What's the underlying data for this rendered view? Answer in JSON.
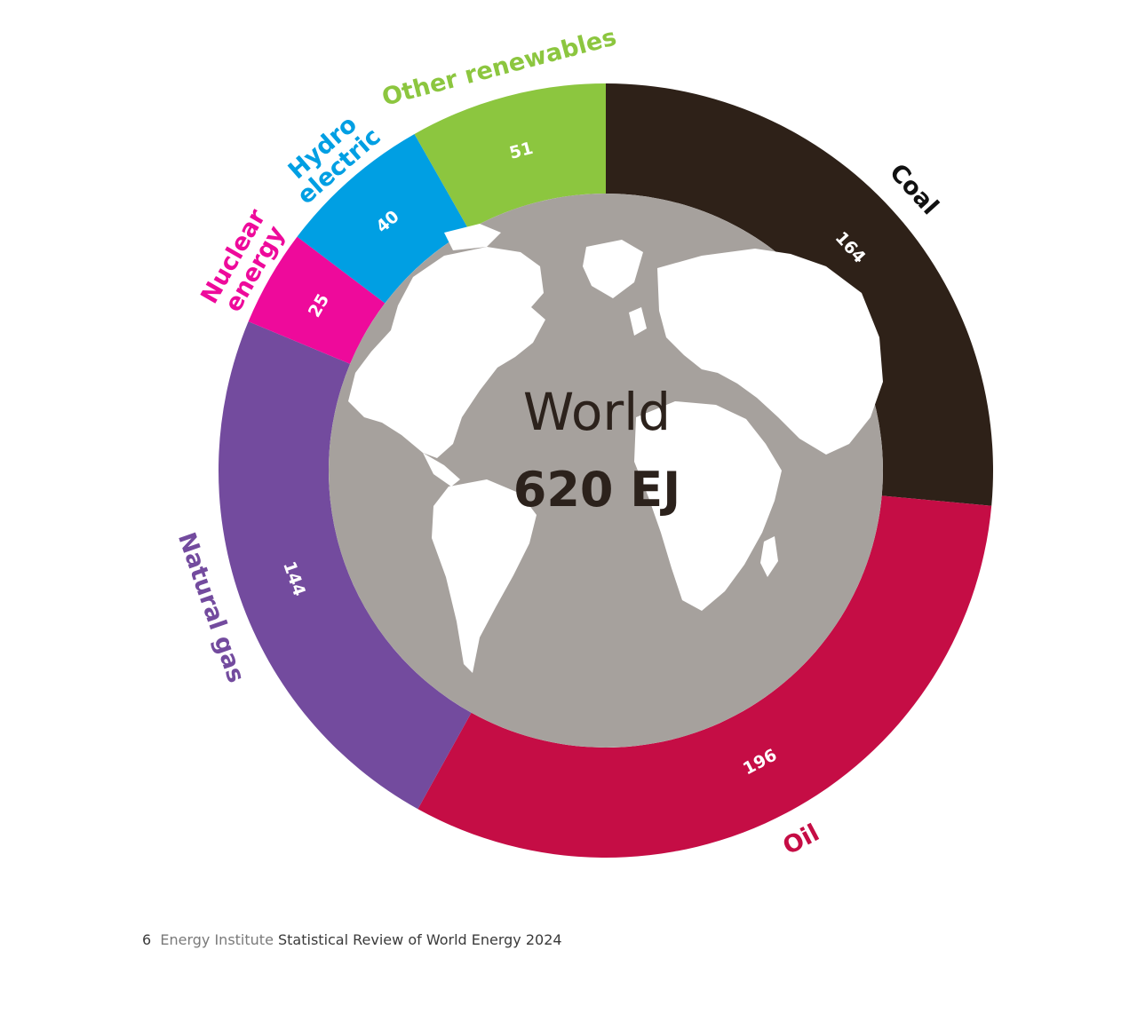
{
  "chart_data": {
    "type": "pie",
    "variant": "donut",
    "center": {
      "title": "World",
      "total": "620 EJ"
    },
    "categories": [
      "Coal",
      "Oil",
      "Natural gas",
      "Nuclear energy",
      "Hydro electric",
      "Other renewables"
    ],
    "label_lines": [
      [
        "Coal"
      ],
      [
        "Oil"
      ],
      [
        "Natural gas"
      ],
      [
        "Nuclear",
        "energy"
      ],
      [
        "Hydro",
        "electric"
      ],
      [
        "Other renewables"
      ]
    ],
    "values": [
      164,
      196,
      144,
      25,
      40,
      51
    ],
    "value_labels": [
      "164",
      "196",
      "144",
      "25",
      "40",
      "51"
    ],
    "colors": [
      "#2e2118",
      "#c50d45",
      "#734b9e",
      "#ee0a9b",
      "#009fe3",
      "#8cc63f"
    ],
    "label_colors": [
      "#111111",
      "#c50d45",
      "#734b9e",
      "#ee0a9b",
      "#009fe3",
      "#8cc63f"
    ],
    "center_fill": "#a6a19d",
    "land_color": "#ffffff"
  },
  "footer": {
    "page_number": "6",
    "publisher": "Energy Institute",
    "publication": "Statistical Review of World Energy 2024"
  }
}
